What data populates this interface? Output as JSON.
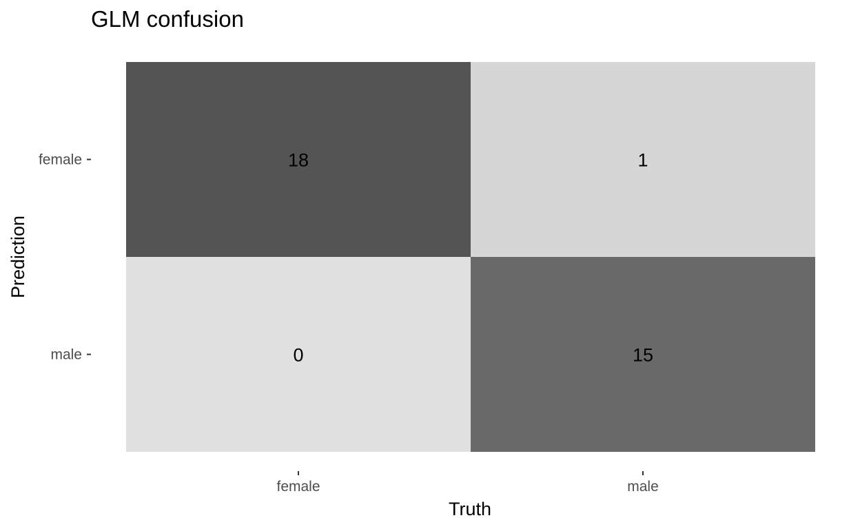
{
  "chart_data": {
    "type": "heatmap",
    "title": "GLM confusion",
    "xlabel": "Truth",
    "ylabel": "Prediction",
    "x_categories": [
      "female",
      "male"
    ],
    "y_categories": [
      "female",
      "male"
    ],
    "cells": [
      {
        "prediction": "female",
        "truth": "female",
        "value": 18,
        "fill": "#545454"
      },
      {
        "prediction": "female",
        "truth": "male",
        "value": 1,
        "fill": "#d6d6d6"
      },
      {
        "prediction": "male",
        "truth": "female",
        "value": 0,
        "fill": "#e0e0e0"
      },
      {
        "prediction": "male",
        "truth": "male",
        "value": 15,
        "fill": "#696969"
      }
    ],
    "color_scale": {
      "low": "#e0e0e0",
      "high": "#545454"
    },
    "grid": false,
    "legend": "none"
  }
}
